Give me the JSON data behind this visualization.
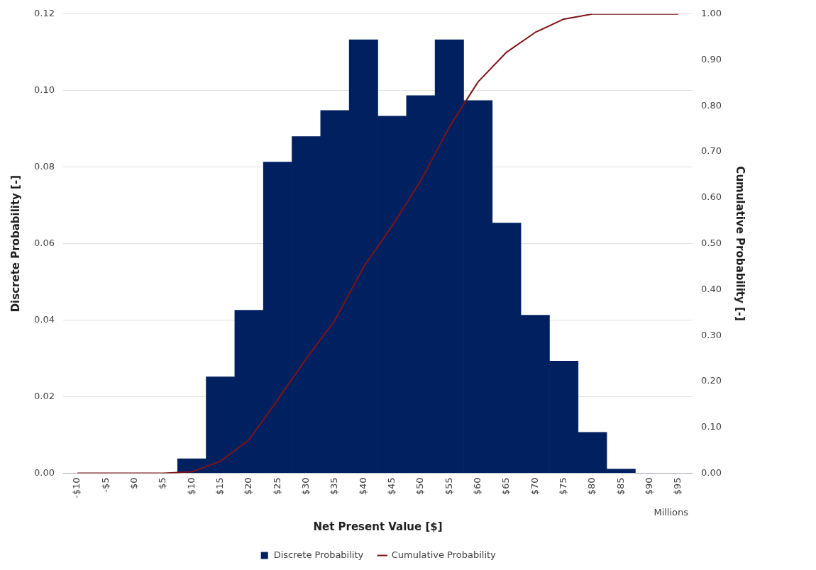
{
  "chart_data": {
    "type": "bar",
    "xlabel": "Net Present Value [$]",
    "ylabel": "Discrete Probability [-]",
    "y2label": "Cumulative Probability [-]",
    "categories": [
      "-$10",
      "-$5",
      "$0",
      "$5",
      "$10",
      "$15",
      "$20",
      "$25",
      "$30",
      "$35",
      "$40",
      "$45",
      "$50",
      "$55",
      "$60",
      "$65",
      "$70",
      "$75",
      "$80",
      "$85",
      "$90",
      "$95"
    ],
    "series": [
      {
        "name": "Discrete Probability",
        "color": "#002060",
        "values": [
          0,
          0,
          0,
          0,
          0.0038,
          0.0252,
          0.0426,
          0.0813,
          0.088,
          0.0948,
          0.1133,
          0.0933,
          0.0987,
          0.1133,
          0.0974,
          0.0654,
          0.0413,
          0.0293,
          0.0107,
          0.0011,
          0,
          0
        ]
      },
      {
        "name": "Cumulative Probability",
        "type": "line",
        "axis": "y2",
        "color": "#7b1416",
        "values": [
          0,
          0,
          0,
          0,
          0.003,
          0.026,
          0.073,
          0.16,
          0.25,
          0.333,
          0.449,
          0.539,
          0.637,
          0.754,
          0.852,
          0.917,
          0.96,
          0.989,
          1,
          1,
          1,
          1
        ]
      }
    ],
    "ylim": [
      0,
      0.12
    ],
    "yticks": [
      {
        "value": 0,
        "label": "0.00"
      },
      {
        "value": 0.02,
        "label": "0.02"
      },
      {
        "value": 0.04,
        "label": "0.04"
      },
      {
        "value": 0.06,
        "label": "0.06"
      },
      {
        "value": 0.08,
        "label": "0.08"
      },
      {
        "value": 0.1,
        "label": "0.10"
      },
      {
        "value": 0.12,
        "label": "0.12"
      }
    ],
    "y2lim": [
      0,
      1
    ],
    "y2ticks": [
      {
        "value": 0,
        "label": "0.00"
      },
      {
        "value": 0.1,
        "label": "0.10"
      },
      {
        "value": 0.2,
        "label": "0.20"
      },
      {
        "value": 0.3,
        "label": "0.30"
      },
      {
        "value": 0.4,
        "label": "0.40"
      },
      {
        "value": 0.5,
        "label": "0.50"
      },
      {
        "value": 0.6,
        "label": "0.60"
      },
      {
        "value": 0.7,
        "label": "0.70"
      },
      {
        "value": 0.8,
        "label": "0.80"
      },
      {
        "value": 0.9,
        "label": "0.90"
      },
      {
        "value": 1,
        "label": "1.00"
      }
    ],
    "annotations": [
      "Millions"
    ],
    "grid": "y",
    "legend": "bottom",
    "marker": "none",
    "line_style": "solid"
  }
}
